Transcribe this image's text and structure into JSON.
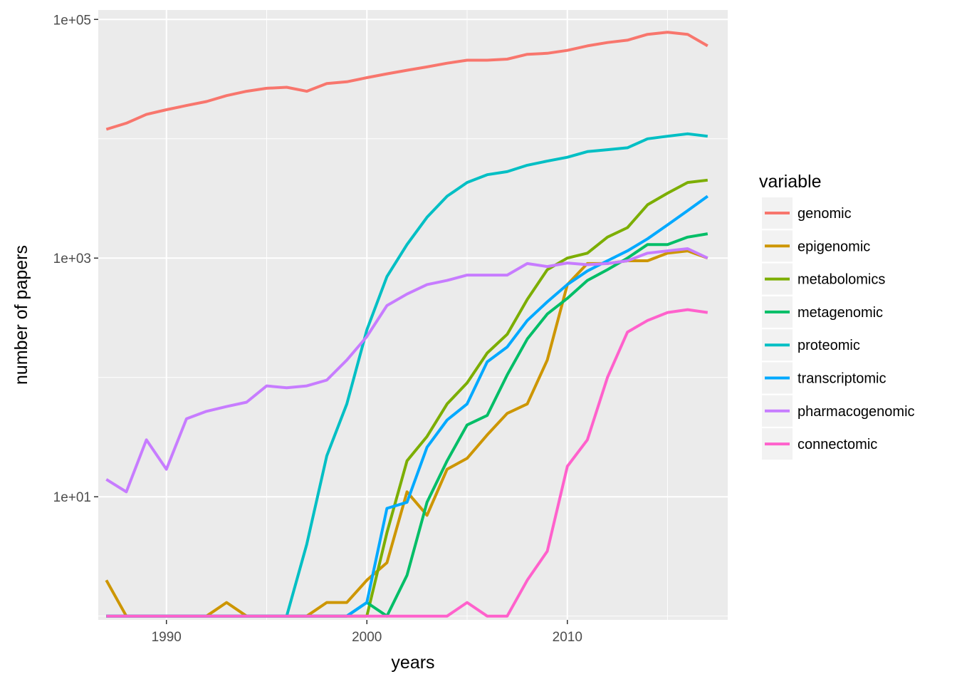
{
  "chart_data": {
    "type": "line",
    "xlabel": "years",
    "ylabel": "number of papers",
    "y_scale": "log10",
    "xlim": [
      1986.6,
      2018.0
    ],
    "ylim": [
      0.93,
      120000
    ],
    "x_ticks": [
      1990,
      2000,
      2010
    ],
    "x_tick_labels": [
      "1990",
      "2000",
      "2010"
    ],
    "y_ticks": [
      10,
      1000,
      100000
    ],
    "y_tick_labels": [
      "1e+01",
      "1e+03",
      "1e+05"
    ],
    "y_minor_ticks": [
      1,
      100,
      10000
    ],
    "grid": true,
    "legend": {
      "title": "variable",
      "position": "right"
    },
    "x": [
      1987,
      1988,
      1989,
      1990,
      1991,
      1992,
      1993,
      1994,
      1995,
      1996,
      1997,
      1998,
      1999,
      2000,
      2001,
      2002,
      2003,
      2004,
      2005,
      2006,
      2007,
      2008,
      2009,
      2010,
      2011,
      2012,
      2013,
      2014,
      2015,
      2016,
      2017
    ],
    "series": [
      {
        "name": "genomic",
        "color": "#F8766D",
        "values": [
          12000,
          13500,
          16000,
          17500,
          19000,
          20500,
          23000,
          25000,
          26500,
          27000,
          25000,
          29000,
          30000,
          32500,
          35000,
          37500,
          40000,
          43000,
          45500,
          45500,
          46500,
          51000,
          52000,
          55000,
          60000,
          64000,
          67000,
          75000,
          78000,
          75000,
          60000
        ]
      },
      {
        "name": "epigenomic",
        "color": "#CD9600",
        "values": [
          2,
          1,
          1,
          1,
          1,
          1,
          1.3,
          1,
          1,
          1,
          1,
          1.3,
          1.3,
          2,
          2.8,
          11,
          7,
          17,
          21,
          33,
          50,
          60,
          140,
          600,
          900,
          900,
          950,
          950,
          1100,
          1150,
          1000
        ]
      },
      {
        "name": "metabolomics",
        "color": "#7CAE00",
        "values": [
          1,
          1,
          1,
          1,
          1,
          1,
          1,
          1,
          1,
          1,
          1,
          1,
          1,
          1,
          5,
          20,
          32,
          60,
          90,
          160,
          230,
          450,
          800,
          1000,
          1100,
          1500,
          1800,
          2800,
          3500,
          4300,
          4500
        ]
      },
      {
        "name": "metagenomic",
        "color": "#00BE67",
        "values": [
          1,
          1,
          1,
          1,
          1,
          1,
          1,
          1,
          1,
          1,
          1,
          1,
          1,
          1.3,
          1,
          2.2,
          9,
          20,
          40,
          48,
          105,
          210,
          340,
          460,
          650,
          800,
          1000,
          1300,
          1300,
          1500,
          1600
        ]
      },
      {
        "name": "proteomic",
        "color": "#00BFC4",
        "values": [
          1,
          1,
          1,
          1,
          1,
          1,
          1,
          1,
          1,
          1,
          4,
          22,
          60,
          250,
          700,
          1300,
          2200,
          3300,
          4300,
          5000,
          5300,
          6000,
          6500,
          7000,
          7800,
          8100,
          8400,
          10000,
          10500,
          11000,
          10500
        ]
      },
      {
        "name": "transcriptomic",
        "color": "#00A9FF",
        "values": [
          1,
          1,
          1,
          1,
          1,
          1,
          1,
          1,
          1,
          1,
          1,
          1,
          1,
          1.3,
          8,
          9,
          26,
          44,
          60,
          135,
          180,
          300,
          430,
          600,
          780,
          950,
          1150,
          1450,
          1900,
          2500,
          3300
        ]
      },
      {
        "name": "pharmacogenomic",
        "color": "#C77CFF",
        "values": [
          14,
          11,
          30,
          17,
          45,
          52,
          57,
          62,
          85,
          82,
          85,
          95,
          140,
          220,
          400,
          500,
          600,
          650,
          720,
          720,
          720,
          900,
          850,
          910,
          880,
          900,
          950,
          1100,
          1150,
          1200,
          1000
        ]
      },
      {
        "name": "connectomic",
        "color": "#FF61CC",
        "values": [
          1,
          1,
          1,
          1,
          1,
          1,
          1,
          1,
          1,
          1,
          1,
          1,
          1,
          1,
          1,
          1,
          1,
          1,
          1.3,
          1,
          1,
          2,
          3.5,
          18,
          30,
          100,
          240,
          300,
          350,
          370,
          350
        ]
      }
    ]
  }
}
